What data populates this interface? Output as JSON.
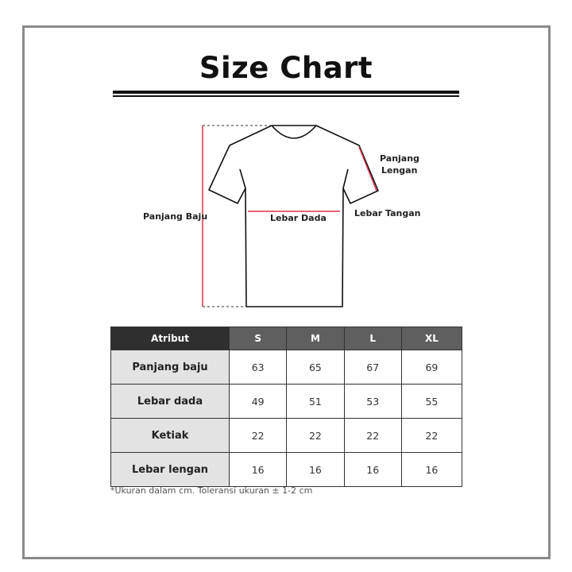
{
  "title": "Size Chart",
  "diagram": {
    "labels": {
      "panjang_baju": "Panjang Baju",
      "lebar_dada": "Lebar Dada",
      "lebar_tangan": "Lebar Tangan",
      "panjang_lengan_1": "Panjang",
      "panjang_lengan_2": "Lengan"
    },
    "measure_color": "#e0304a"
  },
  "table": {
    "headers": [
      "Atribut",
      "S",
      "M",
      "L",
      "XL"
    ],
    "rows": [
      {
        "label": "Panjang baju",
        "values": [
          "63",
          "65",
          "67",
          "69"
        ]
      },
      {
        "label": "Lebar dada",
        "values": [
          "49",
          "51",
          "53",
          "55"
        ]
      },
      {
        "label": "Ketiak",
        "values": [
          "22",
          "22",
          "22",
          "22"
        ]
      },
      {
        "label": "Lebar lengan",
        "values": [
          "16",
          "16",
          "16",
          "16"
        ]
      }
    ]
  },
  "note": "*Ukuran dalam cm. Toleransi ukuran ± 1-2 cm"
}
